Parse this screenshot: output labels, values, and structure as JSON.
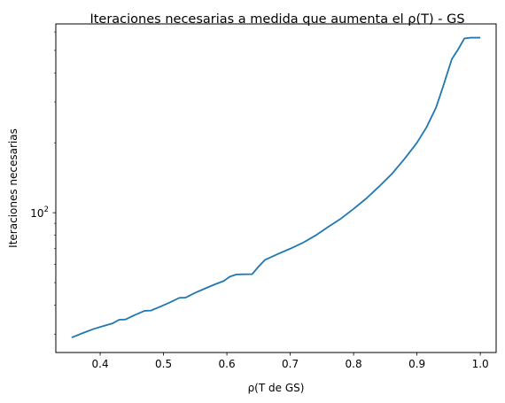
{
  "chart_data": {
    "type": "line",
    "title": "Iteraciones necesarias a medida que aumenta el ρ(T) - GS",
    "xlabel": "ρ(T de GS)",
    "ylabel": "Iteraciones necesarias",
    "xlim": [
      0.33,
      1.025
    ],
    "ylim": [
      25,
      650
    ],
    "y_scale": "log",
    "grid": false,
    "line_color": "#1f77b4",
    "x_ticks": [
      {
        "value": 0.4,
        "label": "0.4"
      },
      {
        "value": 0.5,
        "label": "0.5"
      },
      {
        "value": 0.6,
        "label": "0.6"
      },
      {
        "value": 0.7,
        "label": "0.7"
      },
      {
        "value": 0.8,
        "label": "0.8"
      },
      {
        "value": 0.9,
        "label": "0.9"
      },
      {
        "value": 1.0,
        "label": "1.0"
      }
    ],
    "y_major_ticks": [
      {
        "value": 100,
        "label_base": "10",
        "label_exp": "2"
      }
    ],
    "y_minor_ticks": [
      30,
      40,
      50,
      60,
      70,
      80,
      90,
      200,
      300,
      400,
      500,
      600
    ],
    "series": [
      {
        "x": [
          0.355,
          0.375,
          0.39,
          0.405,
          0.42,
          0.43,
          0.44,
          0.455,
          0.47,
          0.48,
          0.495,
          0.51,
          0.525,
          0.535,
          0.55,
          0.565,
          0.58,
          0.595,
          0.605,
          0.615,
          0.625,
          0.64,
          0.65,
          0.66,
          0.68,
          0.7,
          0.72,
          0.74,
          0.76,
          0.78,
          0.8,
          0.82,
          0.84,
          0.86,
          0.88,
          0.9,
          0.915,
          0.93,
          0.94,
          0.955,
          0.965,
          0.975,
          0.985,
          1.0
        ],
        "y": [
          29,
          30.5,
          31.6,
          32.5,
          33.4,
          34.6,
          34.7,
          36.3,
          37.8,
          37.9,
          39.4,
          41.1,
          43.0,
          43.1,
          45.2,
          47.1,
          49.0,
          50.8,
          53.1,
          54.2,
          54.3,
          54.4,
          58.6,
          62.6,
          66.3,
          70.0,
          74.2,
          79.8,
          86.9,
          94.3,
          103.9,
          115.1,
          129.5,
          146.5,
          170.0,
          200.0,
          233.0,
          283.0,
          341.0,
          458.0,
          505.0,
          563.0,
          567.0,
          567.0
        ]
      }
    ]
  }
}
